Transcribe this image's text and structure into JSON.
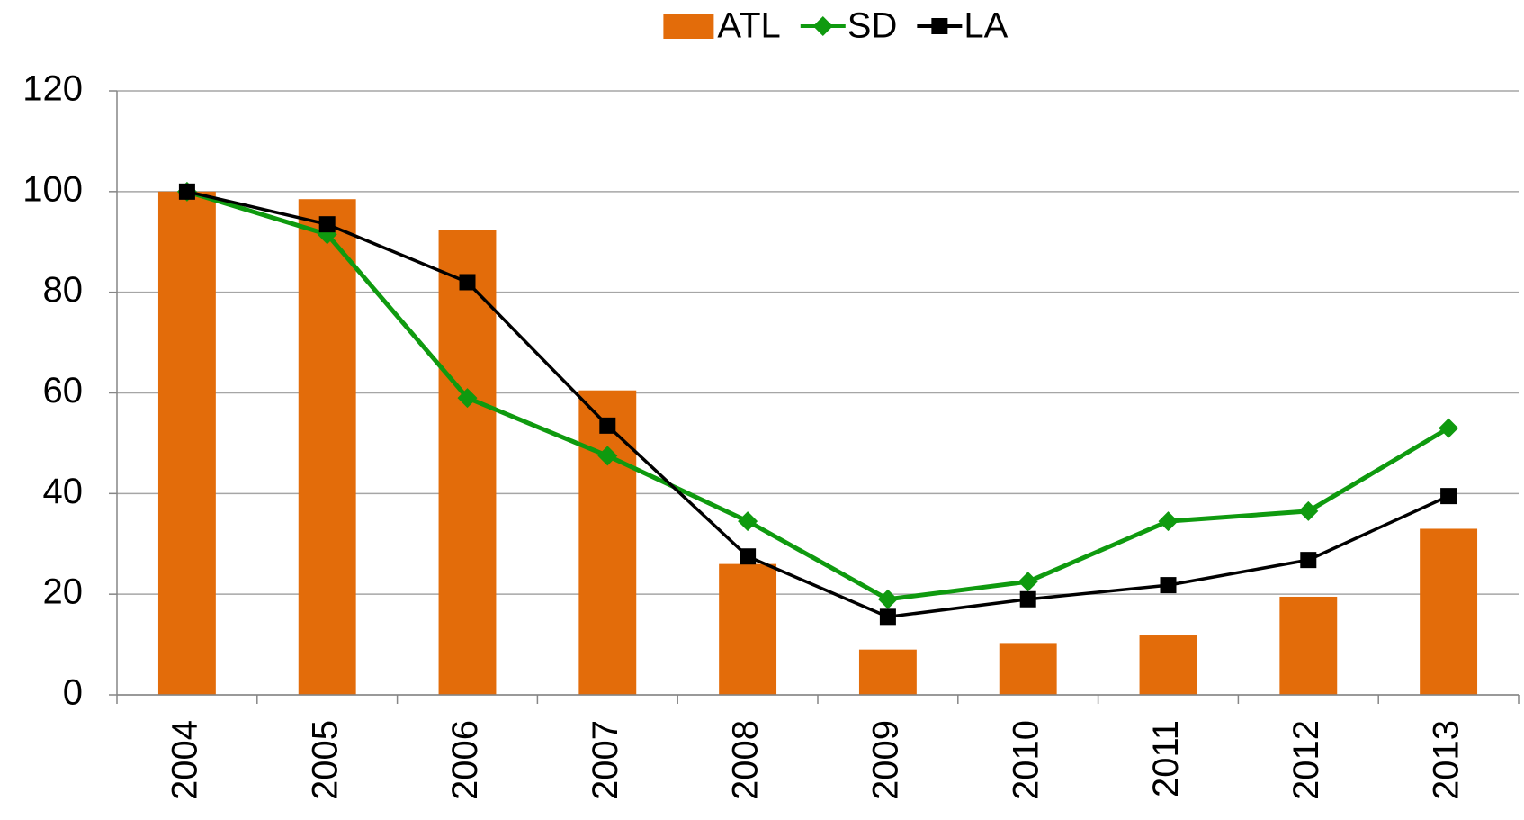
{
  "chart_data": {
    "type": "bar_line",
    "categories": [
      "2004",
      "2005",
      "2006",
      "2007",
      "2008",
      "2009",
      "2010",
      "2011",
      "2012",
      "2013"
    ],
    "series": [
      {
        "name": "ATL",
        "type": "bar",
        "color": "#e36c0a",
        "values": [
          100,
          98.5,
          92.3,
          60.5,
          26,
          9,
          10.3,
          11.8,
          19.5,
          33
        ]
      },
      {
        "name": "SD",
        "type": "line",
        "marker": "diamond",
        "color": "#0f9a0f",
        "values": [
          100,
          91.5,
          59,
          47.5,
          34.5,
          19,
          22.5,
          34.5,
          36.5,
          53
        ]
      },
      {
        "name": "LA",
        "type": "line",
        "marker": "square",
        "color": "#000000",
        "values": [
          100,
          93.5,
          82,
          53.5,
          27.5,
          15.5,
          19,
          21.8,
          26.8,
          39.5
        ]
      }
    ],
    "ylim": [
      0,
      120
    ],
    "yticks": [
      0,
      20,
      40,
      60,
      80,
      100,
      120
    ],
    "grid": true,
    "legend": "top"
  }
}
